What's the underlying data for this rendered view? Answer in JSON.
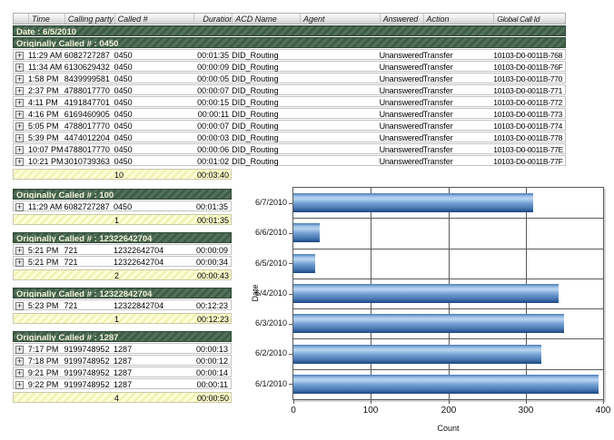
{
  "colors": {
    "group_band_green": "#46654c",
    "group_band_text": "#f2f0da",
    "total_row_yellow": "#f8f8c4",
    "bar_blue": "#5e90ca",
    "grid_line": "#5a5a5a"
  },
  "table": {
    "columns": [
      "",
      "Time",
      "Calling party #",
      "Called #",
      "Duration",
      "ACD Name",
      "Agent",
      "Answered",
      "Action",
      "Global Call Id"
    ],
    "date_header": "Date : 6/5/2010",
    "expand_glyph": "+",
    "main_section": {
      "header": "Originally Called # : 0450",
      "rows": [
        {
          "time": "11:29 AM",
          "calling": "6082727287",
          "called": "0450",
          "duration": "00:01:35",
          "acd": "DID_Routing",
          "agent": "",
          "answered": "Unanswered",
          "action": "Transfer",
          "global_id": "10103-D0-0011B-768"
        },
        {
          "time": "11:34 AM",
          "calling": "6130629432",
          "called": "0450",
          "duration": "00:00:09",
          "acd": "DID_Routing",
          "agent": "",
          "answered": "Unanswered",
          "action": "Transfer",
          "global_id": "10103-D0-0011B-76F"
        },
        {
          "time": "1:58 PM",
          "calling": "8439999581",
          "called": "0450",
          "duration": "00:00:05",
          "acd": "DID_Routing",
          "agent": "",
          "answered": "Unanswered",
          "action": "Transfer",
          "global_id": "10103-D0-0011B-770"
        },
        {
          "time": "2:37 PM",
          "calling": "4788017770",
          "called": "0450",
          "duration": "00:00:07",
          "acd": "DID_Routing",
          "agent": "",
          "answered": "Unanswered",
          "action": "Transfer",
          "global_id": "10103-D0-0011B-771"
        },
        {
          "time": "4:11 PM",
          "calling": "4191847701",
          "called": "0450",
          "duration": "00:00:15",
          "acd": "DID_Routing",
          "agent": "",
          "answered": "Unanswered",
          "action": "Transfer",
          "global_id": "10103-D0-0011B-772"
        },
        {
          "time": "4:16 PM",
          "calling": "6169460905",
          "called": "0450",
          "duration": "00:00:11",
          "acd": "DID_Routing",
          "agent": "",
          "answered": "Unanswered",
          "action": "Transfer",
          "global_id": "10103-D0-0011B-773"
        },
        {
          "time": "5:05 PM",
          "calling": "4788017770",
          "called": "0450",
          "duration": "00:00:07",
          "acd": "DID_Routing",
          "agent": "",
          "answered": "Unanswered",
          "action": "Transfer",
          "global_id": "10103-D0-0011B-774"
        },
        {
          "time": "5:39 PM",
          "calling": "4474012204",
          "called": "0450",
          "duration": "00:00:03",
          "acd": "DID_Routing",
          "agent": "",
          "answered": "Unanswered",
          "action": "Transfer",
          "global_id": "10103-D0-0011B-778"
        },
        {
          "time": "10:07 PM",
          "calling": "4788017770",
          "called": "0450",
          "duration": "00:00:06",
          "acd": "DID_Routing",
          "agent": "",
          "answered": "Unanswered",
          "action": "Transfer",
          "global_id": "10103-D0-0011B-77E"
        },
        {
          "time": "10:21 PM",
          "calling": "3010739363",
          "called": "0450",
          "duration": "00:01:02",
          "acd": "DID_Routing",
          "agent": "",
          "answered": "Unanswered",
          "action": "Transfer",
          "global_id": "10103-D0-0011B-77F"
        }
      ],
      "total_count": "10",
      "total_duration": "00:03:40"
    },
    "sections": [
      {
        "header": "Originally Called # : 100",
        "rows": [
          {
            "time": "11:29 AM",
            "calling": "6082727287",
            "called": "0450",
            "duration": "00:01:35"
          }
        ],
        "total_count": "1",
        "total_duration": "00:01:35"
      },
      {
        "header": "Originally Called # : 12322642704",
        "rows": [
          {
            "time": "5:21 PM",
            "calling": "721",
            "called": "12322642704",
            "duration": "00:00:09"
          },
          {
            "time": "5:21 PM",
            "calling": "721",
            "called": "12322642704",
            "duration": "00:00:34"
          }
        ],
        "total_count": "2",
        "total_duration": "00:00:43"
      },
      {
        "header": "Originally Called # : 12322842704",
        "rows": [
          {
            "time": "5:23 PM",
            "calling": "721",
            "called": "12322842704",
            "duration": "00:12:23"
          }
        ],
        "total_count": "1",
        "total_duration": "00:12:23"
      },
      {
        "header": "Originally Called # : 1287",
        "rows": [
          {
            "time": "7:17 PM",
            "calling": "9199748952",
            "called": "1287",
            "duration": "00:00:13"
          },
          {
            "time": "7:18 PM",
            "calling": "9199748952",
            "called": "1287",
            "duration": "00:00:12"
          },
          {
            "time": "9:21 PM",
            "calling": "9199748952",
            "called": "1287",
            "duration": "00:00:14"
          },
          {
            "time": "9:22 PM",
            "calling": "9199748952",
            "called": "1287",
            "duration": "00:00:11"
          }
        ],
        "total_count": "4",
        "total_duration": "00:00:50"
      }
    ]
  },
  "chart_data": {
    "type": "bar",
    "orientation": "horizontal",
    "categories": [
      "6/7/2010",
      "6/6/2010",
      "6/5/2010",
      "6/4/2010",
      "6/3/2010",
      "6/2/2010",
      "6/1/2010"
    ],
    "values": [
      310,
      34,
      28,
      342,
      350,
      320,
      394
    ],
    "xlabel": "Count",
    "ylabel": "Date",
    "xlim": [
      0,
      400
    ],
    "xticks": [
      0,
      100,
      200,
      300,
      400
    ],
    "grid": true,
    "legend_position": "none",
    "bar_color": "#5e90ca"
  }
}
